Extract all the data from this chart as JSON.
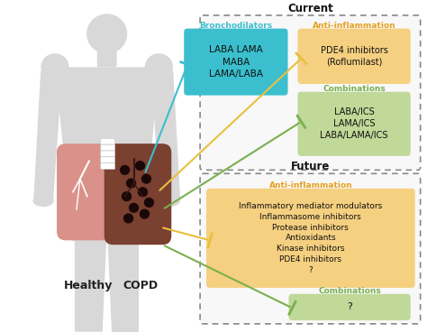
{
  "figure_bg": "#ffffff",
  "body_color": "#d8d8d8",
  "bg_color": "#ebebeb",
  "current_label": "Current",
  "future_label": "Future",
  "broncho_label": "Bronchodilators",
  "broncho_label_color": "#3bbfce",
  "broncho_content": "LABA LAMA\nMABA\nLAMA/LABA",
  "broncho_face": "#3bbfce",
  "broncho_text": "#111111",
  "ai_cur_label": "Anti-inflammation",
  "ai_cur_label_color": "#e8a020",
  "ai_cur_content": "PDE4 inhibitors\n(Roflumilast)",
  "ai_cur_face": "#f5d080",
  "ai_cur_text": "#111111",
  "comb_cur_label": "Combinations",
  "comb_cur_label_color": "#7ab050",
  "comb_cur_content": "LABA/ICS\nLAMA/ICS\nLABA/LAMA/ICS",
  "comb_cur_face": "#c0d898",
  "comb_cur_text": "#111111",
  "ai_fut_label": "Anti-inflammation",
  "ai_fut_label_color": "#e8a020",
  "ai_fut_content": "Inflammatory mediator modulators\nInflammasome inhibitors\nProtease inhibitors\nAntioxidants\nKinase inhibitors\nPDE4 inhibitors\n?",
  "ai_fut_face": "#f5d080",
  "ai_fut_text": "#111111",
  "comb_fut_label": "Combinations",
  "comb_fut_label_color": "#7ab050",
  "comb_fut_content": "?",
  "comb_fut_face": "#c0d898",
  "comb_fut_text": "#111111",
  "healthy_label": "Healthy",
  "copd_label": "COPD",
  "cyan_line": "#3bbfce",
  "yellow_line": "#e8c040",
  "green_line": "#7ab050"
}
